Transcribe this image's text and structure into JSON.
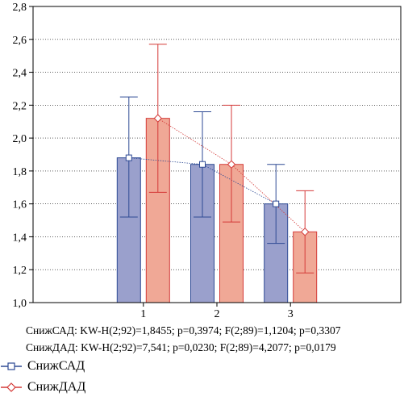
{
  "chart_data": {
    "type": "bar",
    "categories": [
      "1",
      "2",
      "3"
    ],
    "series": [
      {
        "name": "СнижСАД",
        "values": [
          1.88,
          1.84,
          1.6
        ],
        "error_low": [
          1.52,
          1.52,
          1.36
        ],
        "error_high": [
          2.25,
          2.16,
          1.84
        ],
        "fill": "#9aa0cc",
        "stroke": "#2e4a94"
      },
      {
        "name": "СнижДАД",
        "values": [
          2.12,
          1.84,
          1.43
        ],
        "error_low": [
          1.67,
          1.49,
          1.18
        ],
        "error_high": [
          2.57,
          2.2,
          1.68
        ],
        "fill": "#f0a896",
        "stroke": "#d43a38"
      }
    ],
    "ylim": [
      1.0,
      2.8
    ],
    "yticks": [
      "1,0",
      "1,2",
      "1,4",
      "1,6",
      "1,8",
      "2,0",
      "2,2",
      "2,4",
      "2,6",
      "2,8"
    ],
    "ytick_values": [
      1.0,
      1.2,
      1.4,
      1.6,
      1.8,
      2.0,
      2.2,
      2.4,
      2.6,
      2.8
    ],
    "grid": true,
    "legend_position": "bottom-left"
  },
  "stats": {
    "line1": "СнижСАД: KW-H(2;92)=1,8455; p=0,3974; F(2;89)=1,1204; p=0,3307",
    "line2": "СнижДАД: KW-H(2;92)=7,541; p=0,0230; F(2;89)=4,2077; p=0,0179"
  },
  "legend": {
    "items": [
      {
        "label": "СнижСАД"
      },
      {
        "label": "СнижДАД"
      }
    ]
  }
}
